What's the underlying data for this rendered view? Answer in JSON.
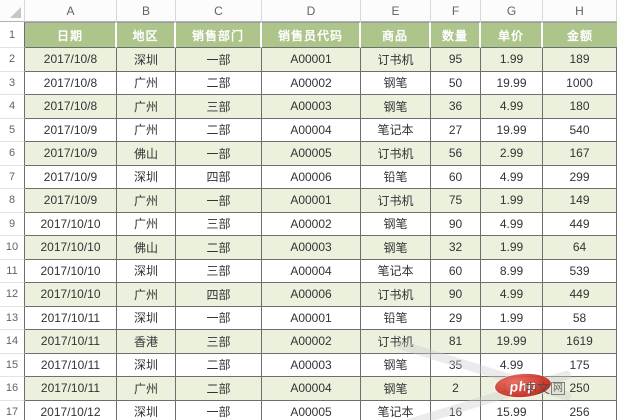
{
  "app": {
    "type": "excel-spreadsheet-screenshot"
  },
  "colors": {
    "header_bg": "#ADC48B",
    "alt_row_bg": "#ECF1DE",
    "grid_border": "#6E6E6E",
    "logo_red": "#C6271C"
  },
  "sheet": {
    "column_letters": [
      "A",
      "B",
      "C",
      "D",
      "E",
      "F",
      "G",
      "H"
    ],
    "row_numbers": [
      "1",
      "2",
      "3",
      "4",
      "5",
      "6",
      "7",
      "8",
      "9",
      "10",
      "11",
      "12",
      "13",
      "14",
      "15",
      "16",
      "17"
    ]
  },
  "table": {
    "headers": [
      "日期",
      "地区",
      "销售部门",
      "销售员代码",
      "商品",
      "数量",
      "单价",
      "金额"
    ],
    "rows": [
      [
        "2017/10/8",
        "深圳",
        "一部",
        "A00001",
        "订书机",
        "95",
        "1.99",
        "189"
      ],
      [
        "2017/10/8",
        "广州",
        "二部",
        "A00002",
        "钢笔",
        "50",
        "19.99",
        "1000"
      ],
      [
        "2017/10/8",
        "广州",
        "三部",
        "A00003",
        "钢笔",
        "36",
        "4.99",
        "180"
      ],
      [
        "2017/10/9",
        "广州",
        "二部",
        "A00004",
        "笔记本",
        "27",
        "19.99",
        "540"
      ],
      [
        "2017/10/9",
        "佛山",
        "一部",
        "A00005",
        "订书机",
        "56",
        "2.99",
        "167"
      ],
      [
        "2017/10/9",
        "深圳",
        "四部",
        "A00006",
        "铅笔",
        "60",
        "4.99",
        "299"
      ],
      [
        "2017/10/9",
        "广州",
        "一部",
        "A00001",
        "订书机",
        "75",
        "1.99",
        "149"
      ],
      [
        "2017/10/10",
        "广州",
        "三部",
        "A00002",
        "钢笔",
        "90",
        "4.99",
        "449"
      ],
      [
        "2017/10/10",
        "佛山",
        "二部",
        "A00003",
        "钢笔",
        "32",
        "1.99",
        "64"
      ],
      [
        "2017/10/10",
        "深圳",
        "三部",
        "A00004",
        "笔记本",
        "60",
        "8.99",
        "539"
      ],
      [
        "2017/10/10",
        "广州",
        "四部",
        "A00006",
        "订书机",
        "90",
        "4.99",
        "449"
      ],
      [
        "2017/10/11",
        "深圳",
        "一部",
        "A00001",
        "铅笔",
        "29",
        "1.99",
        "58"
      ],
      [
        "2017/10/11",
        "香港",
        "三部",
        "A00002",
        "订书机",
        "81",
        "19.99",
        "1619"
      ],
      [
        "2017/10/11",
        "深圳",
        "二部",
        "A00003",
        "钢笔",
        "35",
        "4.99",
        "175"
      ],
      [
        "2017/10/11",
        "广州",
        "二部",
        "A00004",
        "钢笔",
        "2",
        "125",
        "250"
      ],
      [
        "2017/10/12",
        "深圳",
        "一部",
        "A00005",
        "笔记本",
        "16",
        "15.99",
        "256"
      ]
    ]
  },
  "watermark": {
    "logo_text": "php",
    "site_prefix": "中文",
    "site_boxed": "网"
  }
}
